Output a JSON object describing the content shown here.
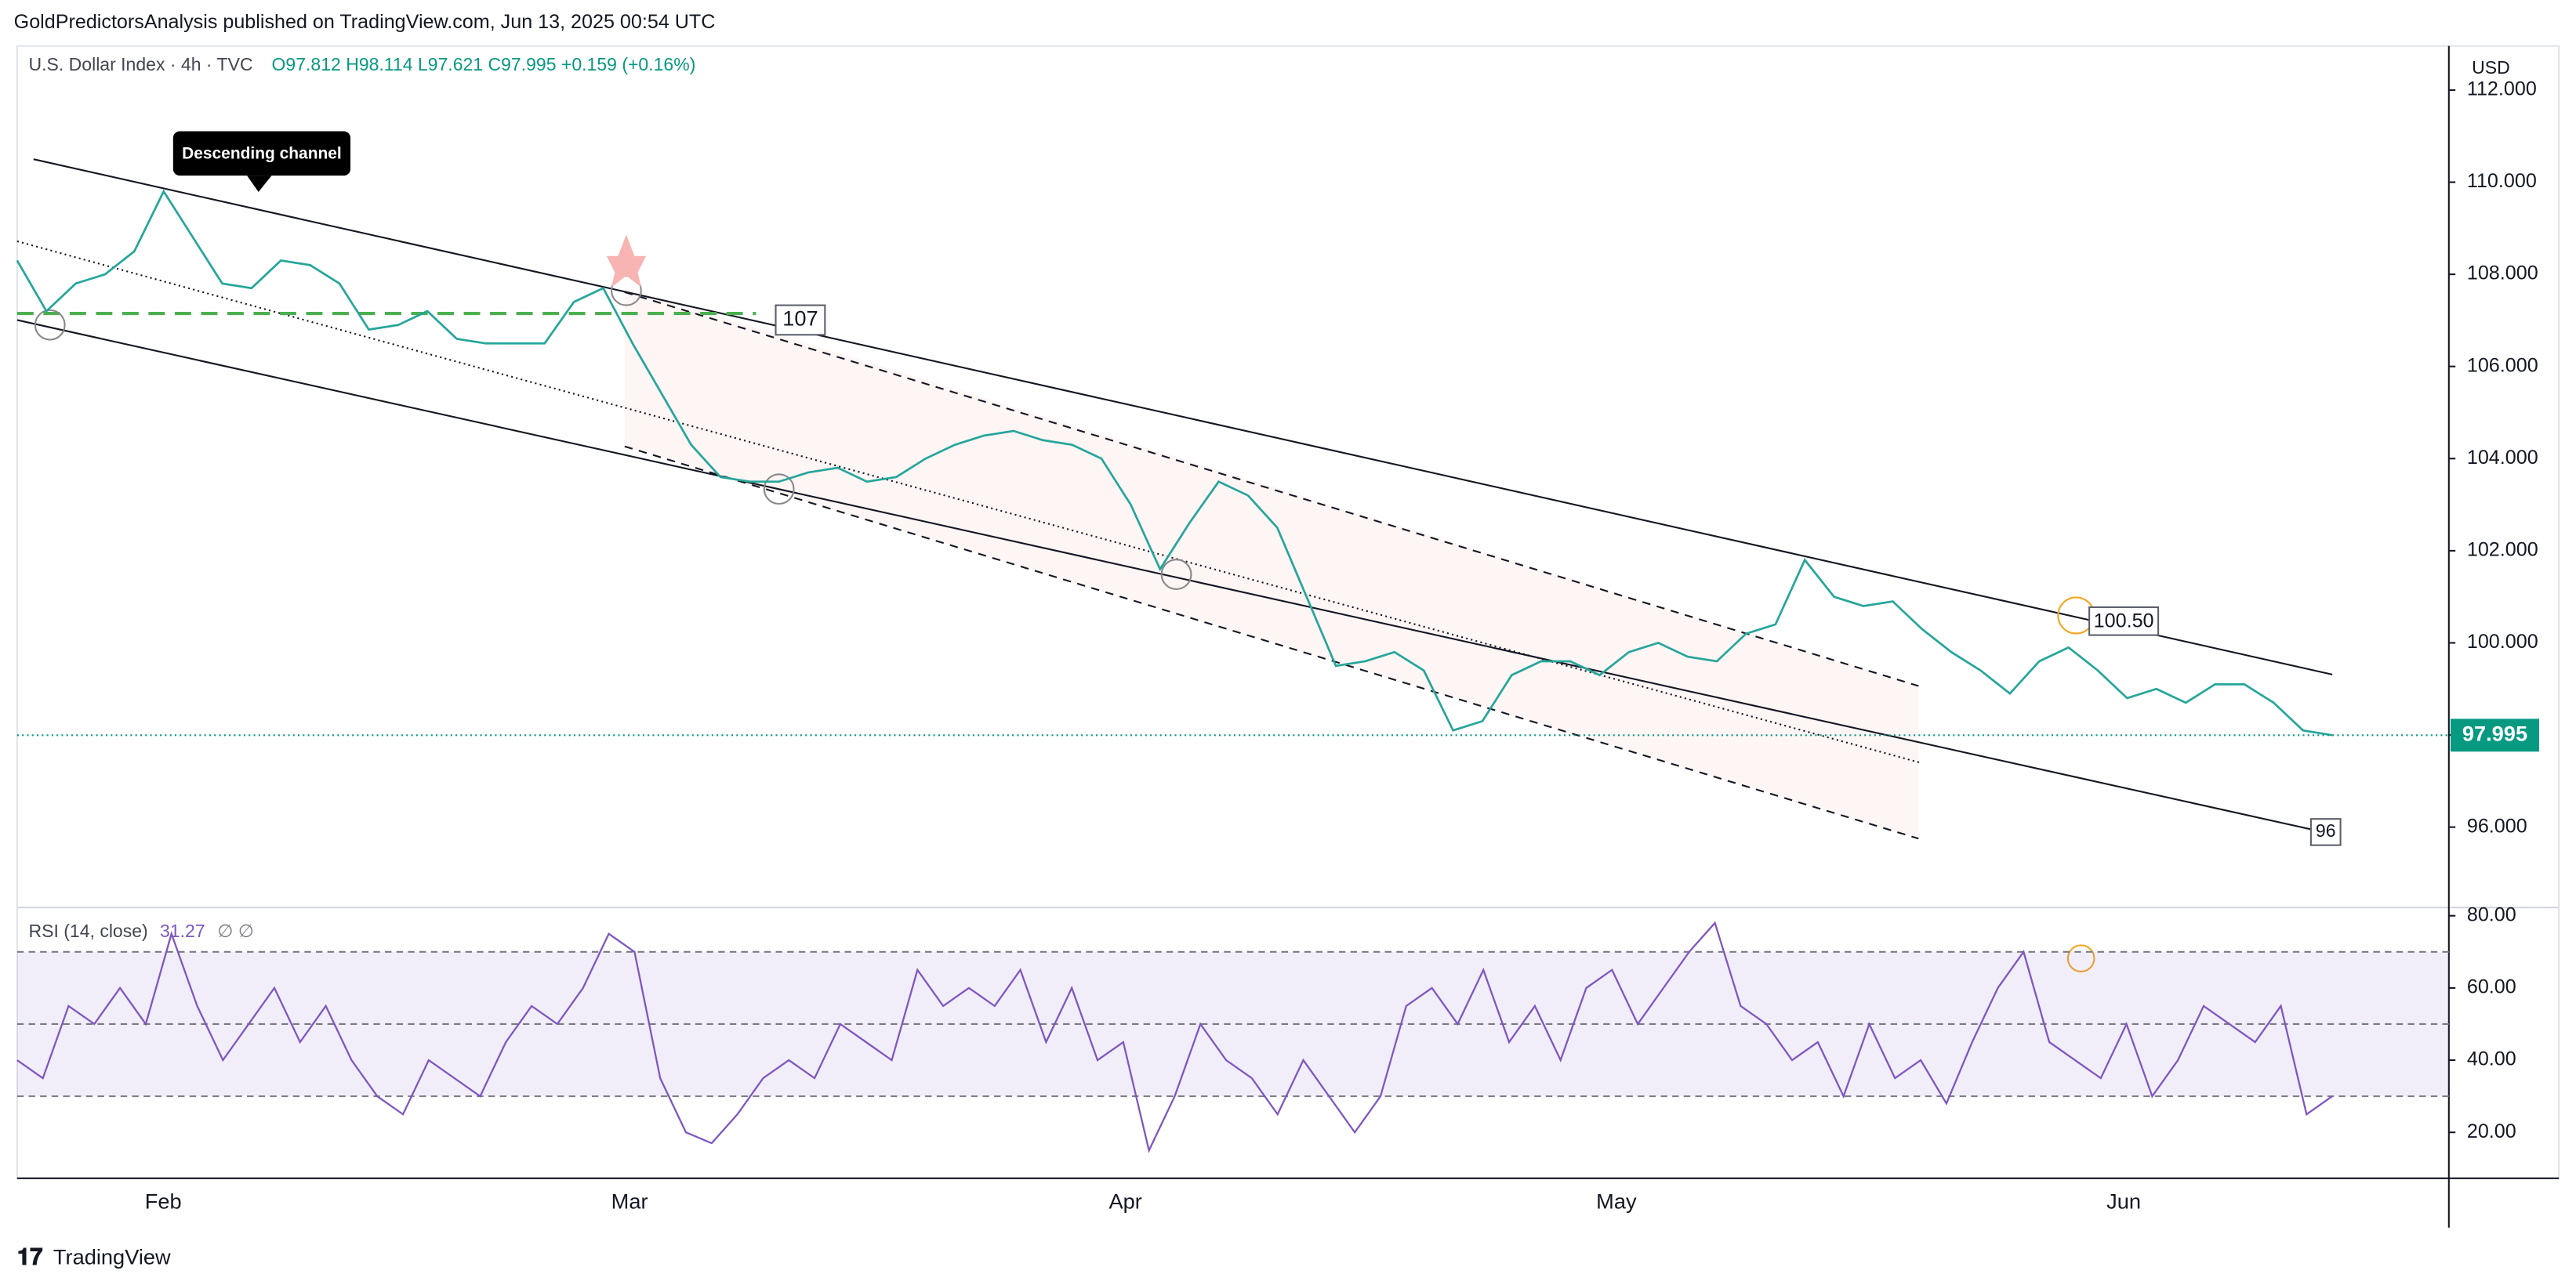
{
  "header": {
    "publisher": "GoldPredictorsAnalysis published on TradingView.com, Jun 13, 2025 00:54 UTC"
  },
  "chart": {
    "symbol": "U.S. Dollar Index · 4h · TVC",
    "ohlc": "O97.812 H98.114 L97.621 C97.995 +0.159 (+0.16%)",
    "currency": "USD",
    "last_price": 97.995,
    "annotations": {
      "channel": "Descending channel",
      "level_top": "107",
      "level_mid": "100.50",
      "level_bottom": "96"
    },
    "ylim": [
      94.29,
      112.886
    ],
    "yticks": [
      {
        "value": 96,
        "label": "96.000"
      },
      {
        "value": 98,
        "label": "98.000"
      },
      {
        "value": 100,
        "label": "100.000"
      },
      {
        "value": 102,
        "label": "102.000"
      },
      {
        "value": 104,
        "label": "104.000"
      },
      {
        "value": 106,
        "label": "106.000"
      },
      {
        "value": 108,
        "label": "108.000"
      },
      {
        "value": 110,
        "label": "110.000"
      },
      {
        "value": 112,
        "label": "112.000"
      }
    ],
    "price": [
      108.3,
      107.2,
      107.8,
      108.0,
      108.5,
      109.8,
      108.8,
      107.8,
      107.7,
      108.3,
      108.2,
      107.8,
      106.8,
      106.9,
      107.2,
      106.6,
      106.5,
      106.5,
      106.5,
      107.4,
      107.7,
      106.5,
      105.4,
      104.3,
      103.6,
      103.5,
      103.5,
      103.7,
      103.8,
      103.5,
      103.6,
      104.0,
      104.3,
      104.5,
      104.6,
      104.4,
      104.3,
      104.0,
      103.0,
      101.6,
      102.6,
      103.5,
      103.2,
      102.5,
      101.0,
      99.5,
      99.6,
      99.8,
      99.4,
      98.1,
      98.3,
      99.3,
      99.6,
      99.6,
      99.3,
      99.8,
      100.0,
      99.7,
      99.6,
      100.2,
      100.4,
      101.8,
      101.0,
      100.8,
      100.9,
      100.3,
      99.8,
      99.4,
      98.9,
      99.6,
      99.9,
      99.4,
      98.8,
      99.0,
      98.7,
      99.1,
      99.1,
      98.7,
      98.1,
      97.995
    ],
    "months": [
      "Feb",
      "Mar",
      "Apr",
      "May",
      "Jun"
    ]
  },
  "rsi": {
    "title": "RSI (14, close)",
    "value": "31.27",
    "extra": "∅ ∅",
    "ylim": [
      7.27,
      82.27
    ],
    "yticks": [
      {
        "value": 20,
        "label": "20.00"
      },
      {
        "value": 40,
        "label": "40.00"
      },
      {
        "value": 60,
        "label": "60.00"
      },
      {
        "value": 80,
        "label": "80.00"
      }
    ],
    "values": [
      40,
      35,
      55,
      50,
      60,
      50,
      75,
      55,
      40,
      50,
      60,
      45,
      55,
      40,
      30,
      25,
      40,
      35,
      30,
      45,
      55,
      50,
      60,
      75,
      70,
      35,
      20,
      17,
      25,
      35,
      40,
      35,
      50,
      45,
      40,
      65,
      55,
      60,
      55,
      65,
      45,
      60,
      40,
      45,
      15,
      30,
      50,
      40,
      35,
      25,
      40,
      30,
      20,
      30,
      55,
      60,
      50,
      65,
      45,
      55,
      40,
      60,
      65,
      50,
      60,
      70,
      78,
      55,
      50,
      40,
      45,
      30,
      50,
      35,
      40,
      28,
      45,
      60,
      70,
      45,
      40,
      35,
      50,
      30,
      40,
      55,
      50,
      45,
      55,
      25,
      30
    ]
  },
  "footer": {
    "brand": "TradingView"
  }
}
